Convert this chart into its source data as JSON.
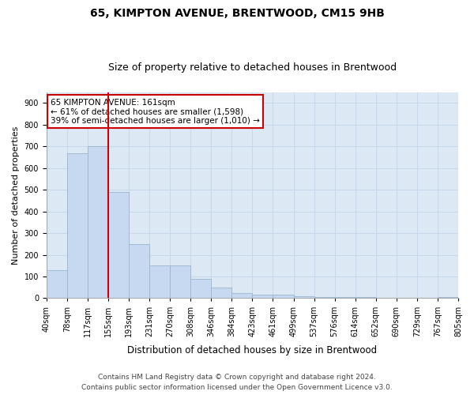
{
  "title": "65, KIMPTON AVENUE, BRENTWOOD, CM15 9HB",
  "subtitle": "Size of property relative to detached houses in Brentwood",
  "xlabel": "Distribution of detached houses by size in Brentwood",
  "ylabel": "Number of detached properties",
  "bar_values": [
    130,
    670,
    700,
    490,
    250,
    150,
    150,
    88,
    50,
    22,
    18,
    17,
    8,
    6,
    5,
    4,
    2,
    1,
    1,
    7
  ],
  "bar_labels": [
    "40sqm",
    "78sqm",
    "117sqm",
    "155sqm",
    "193sqm",
    "231sqm",
    "270sqm",
    "308sqm",
    "346sqm",
    "384sqm",
    "423sqm",
    "461sqm",
    "499sqm",
    "537sqm",
    "576sqm",
    "614sqm",
    "652sqm",
    "690sqm",
    "729sqm",
    "767sqm",
    "805sqm"
  ],
  "bar_color": "#c6d9f1",
  "bar_edge_color": "#9ab5d0",
  "vline_color": "#cc0000",
  "vline_pos": 3,
  "annotation_text": "65 KIMPTON AVENUE: 161sqm\n← 61% of detached houses are smaller (1,598)\n39% of semi-detached houses are larger (1,010) →",
  "annotation_box_color": "#ffffff",
  "annotation_box_edge": "#cc0000",
  "ylim": [
    0,
    950
  ],
  "yticks": [
    0,
    100,
    200,
    300,
    400,
    500,
    600,
    700,
    800,
    900
  ],
  "grid_color": "#c8d8ea",
  "bg_color": "#dce9f5",
  "fig_bg_color": "#ffffff",
  "footer": "Contains HM Land Registry data © Crown copyright and database right 2024.\nContains public sector information licensed under the Open Government Licence v3.0.",
  "title_fontsize": 10,
  "subtitle_fontsize": 9,
  "ylabel_fontsize": 8,
  "xlabel_fontsize": 8.5,
  "tick_fontsize": 7,
  "footer_fontsize": 6.5,
  "annotation_fontsize": 7.5
}
